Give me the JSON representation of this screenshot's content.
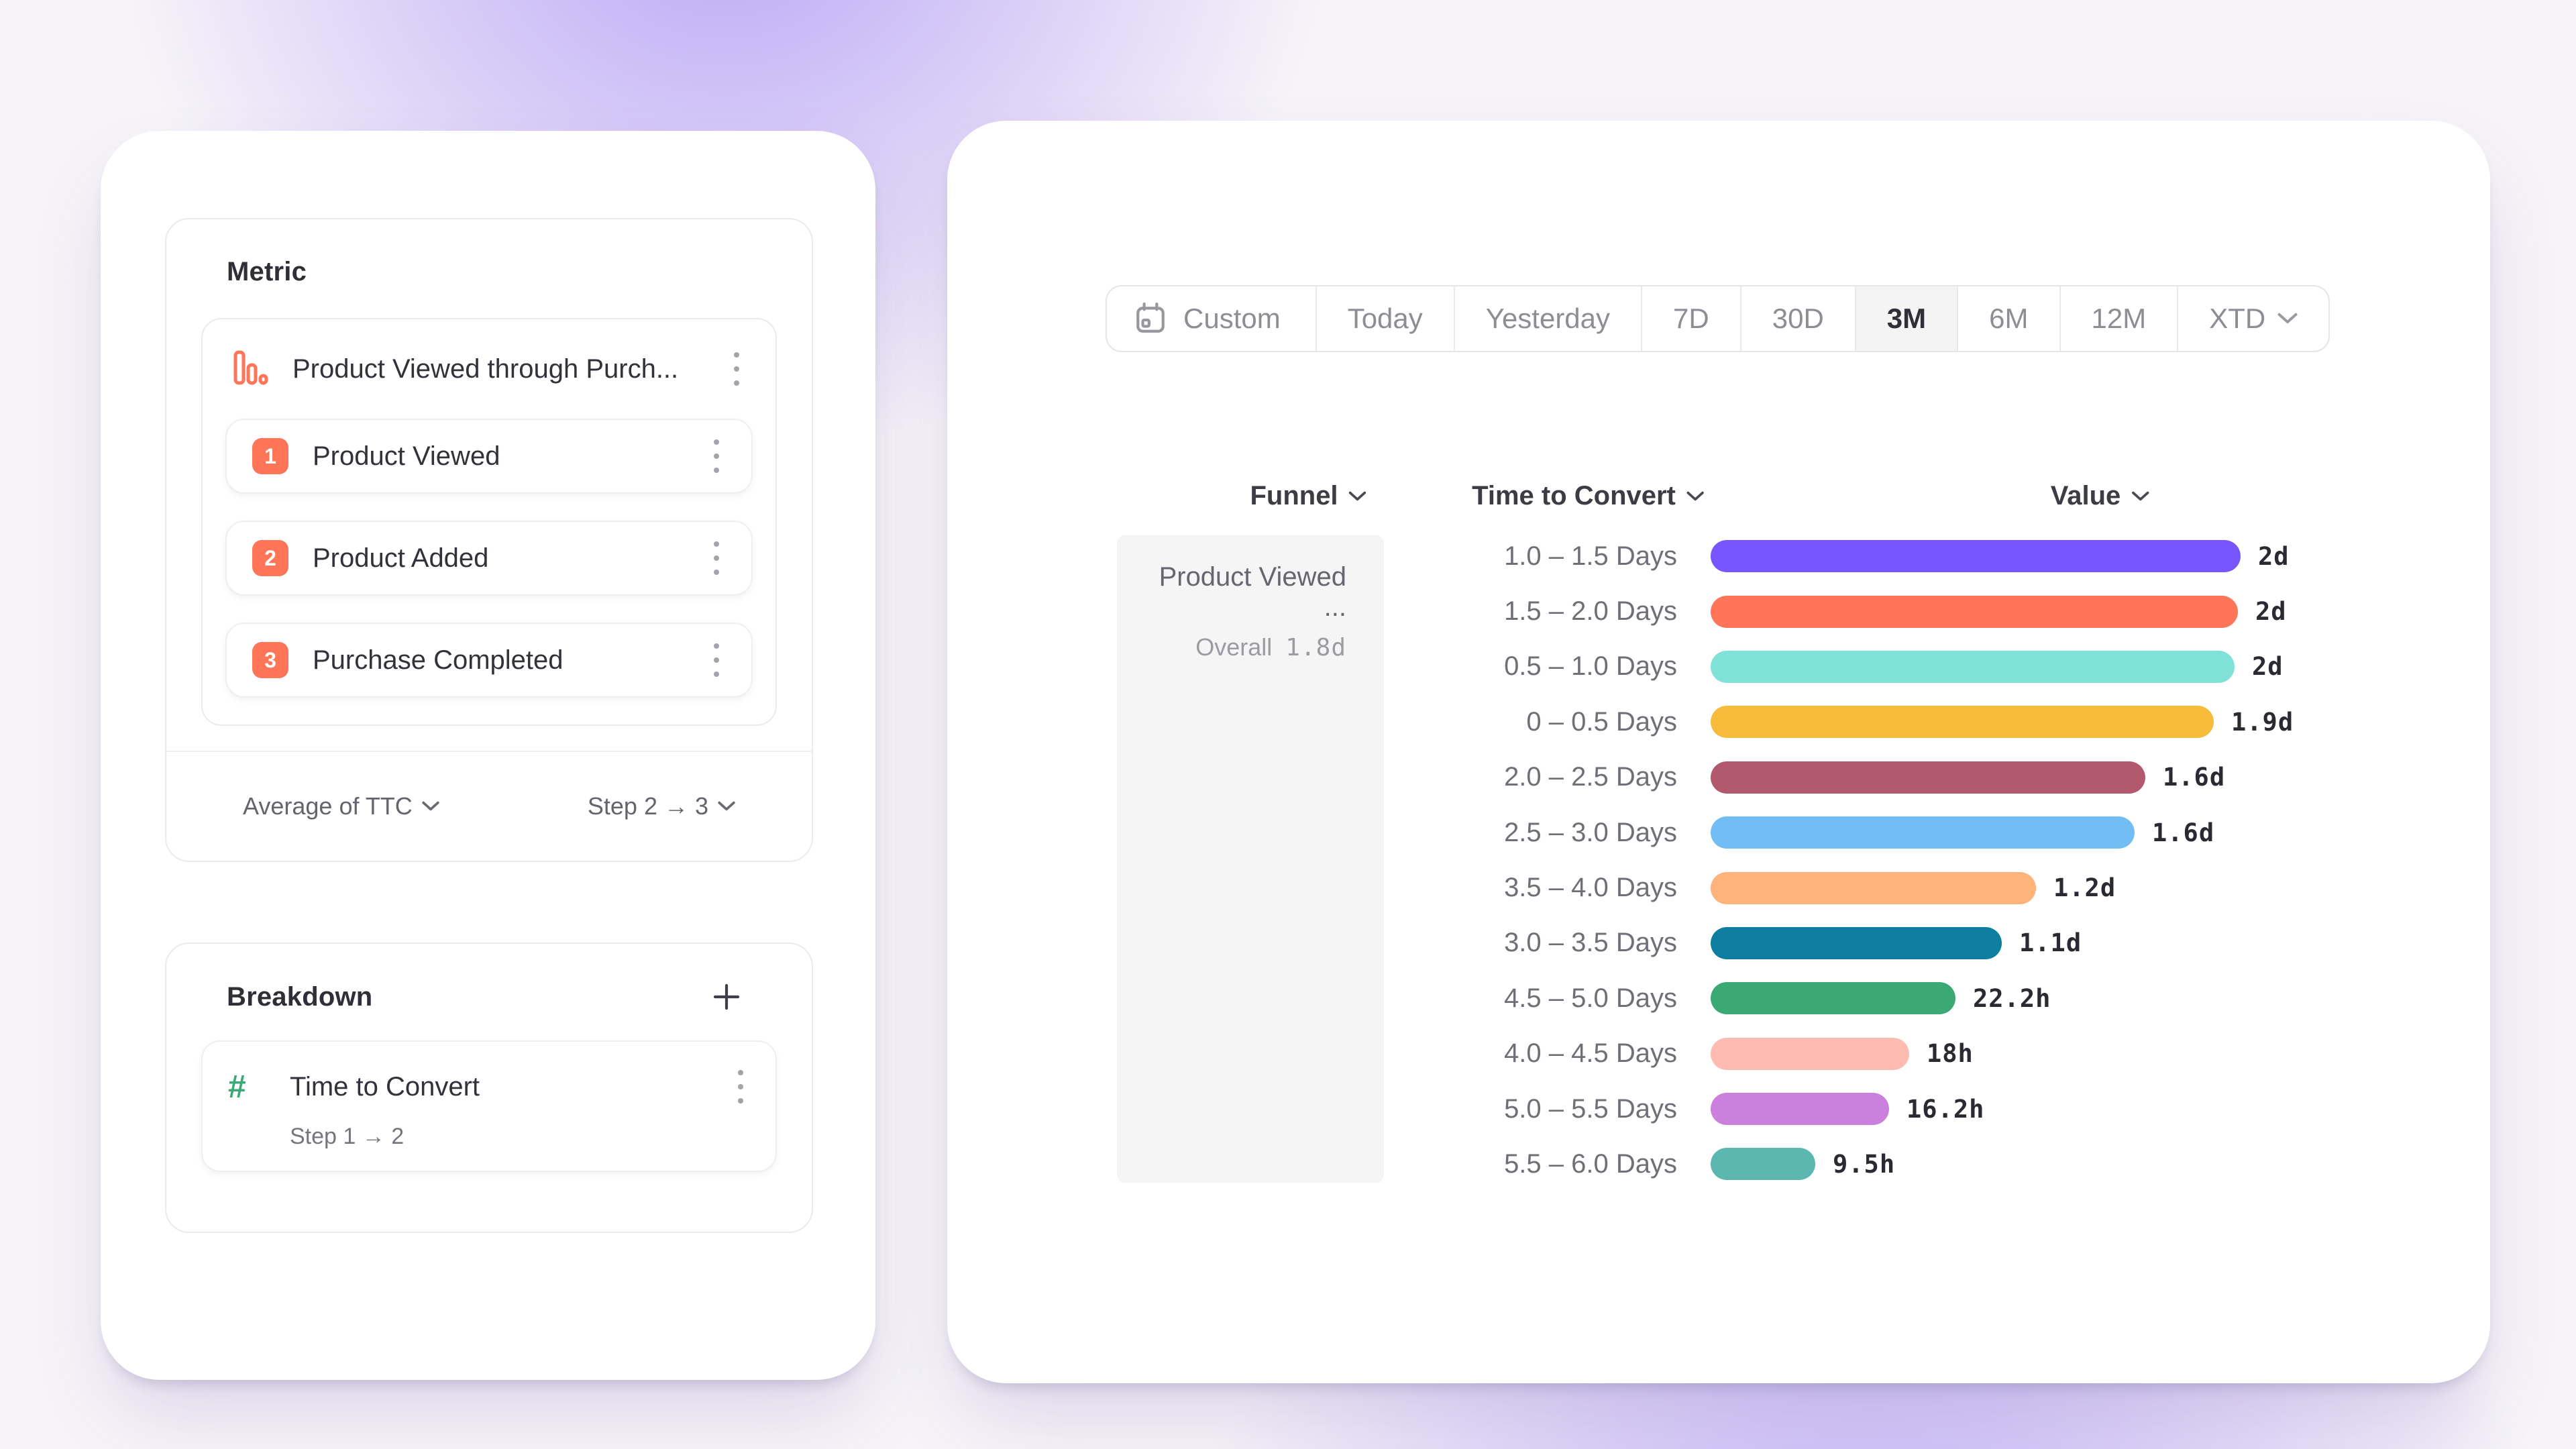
{
  "left_panel": {
    "metric": {
      "title": "Metric",
      "funnel_group": {
        "name": "Product Viewed through Purch...",
        "icon": "funnel-bars-icon",
        "icon_color": "#FF7557",
        "steps": [
          {
            "num": "1",
            "label": "Product Viewed"
          },
          {
            "num": "2",
            "label": "Product Added"
          },
          {
            "num": "3",
            "label": "Purchase Completed"
          }
        ],
        "badge_color": "#FF7557"
      },
      "footer": {
        "aggregation": "Average of TTC",
        "step_range": "Step 2 → 3"
      }
    },
    "breakdown": {
      "title": "Breakdown",
      "item": {
        "icon": "number-hash-icon",
        "icon_color": "#3BA974",
        "label": "Time to Convert",
        "sub": "Step 1 → 2"
      }
    }
  },
  "right_panel": {
    "date_picker": {
      "segments": [
        {
          "label": "Custom",
          "icon": "calendar-icon",
          "selected": false
        },
        {
          "label": "Today",
          "selected": false
        },
        {
          "label": "Yesterday",
          "selected": false
        },
        {
          "label": "7D",
          "selected": false
        },
        {
          "label": "30D",
          "selected": false
        },
        {
          "label": "3M",
          "selected": true
        },
        {
          "label": "6M",
          "selected": false
        },
        {
          "label": "12M",
          "selected": false
        },
        {
          "label": "XTD",
          "selected": false,
          "chevron": true
        }
      ]
    },
    "table": {
      "headers": [
        {
          "label": "Funnel"
        },
        {
          "label": "Time to Convert"
        },
        {
          "label": "Value"
        }
      ],
      "funnel_cell": {
        "name": "Product Viewed ...",
        "overall_label": "Overall",
        "overall_value": "1.8d"
      }
    }
  },
  "chart_data": {
    "type": "bar",
    "orientation": "horizontal",
    "title": "",
    "xlabel": "Value",
    "ylabel": "Time to Convert",
    "unit": "hours",
    "grid": false,
    "categories": [
      "1.0 – 1.5 Days",
      "1.5 – 2.0 Days",
      "0.5 – 1.0 Days",
      "0 – 0.5 Days",
      "2.0 – 2.5 Days",
      "2.5 – 3.0 Days",
      "3.5 – 4.0 Days",
      "3.0 – 3.5 Days",
      "4.5 – 5.0 Days",
      "4.0 – 4.5 Days",
      "5.0 – 5.5 Days",
      "5.5 – 6.0 Days"
    ],
    "values_hours": [
      48,
      47.8,
      47.5,
      45.6,
      39.4,
      38.4,
      29.5,
      26.4,
      22.2,
      18,
      16.2,
      9.5
    ],
    "value_labels": [
      "2d",
      "2d",
      "2d",
      "1.9d",
      "1.6d",
      "1.6d",
      "1.2d",
      "1.1d",
      "22.2h",
      "18h",
      "16.2h",
      "9.5h"
    ],
    "colors": [
      "#7856FF",
      "#FF7557",
      "#80E1D9",
      "#F8BC3C",
      "#B2596E",
      "#72BEF4",
      "#FFB27A",
      "#0D7EA0",
      "#3BA974",
      "#FEBBB2",
      "#CA80DC",
      "#5BB7AF"
    ]
  }
}
